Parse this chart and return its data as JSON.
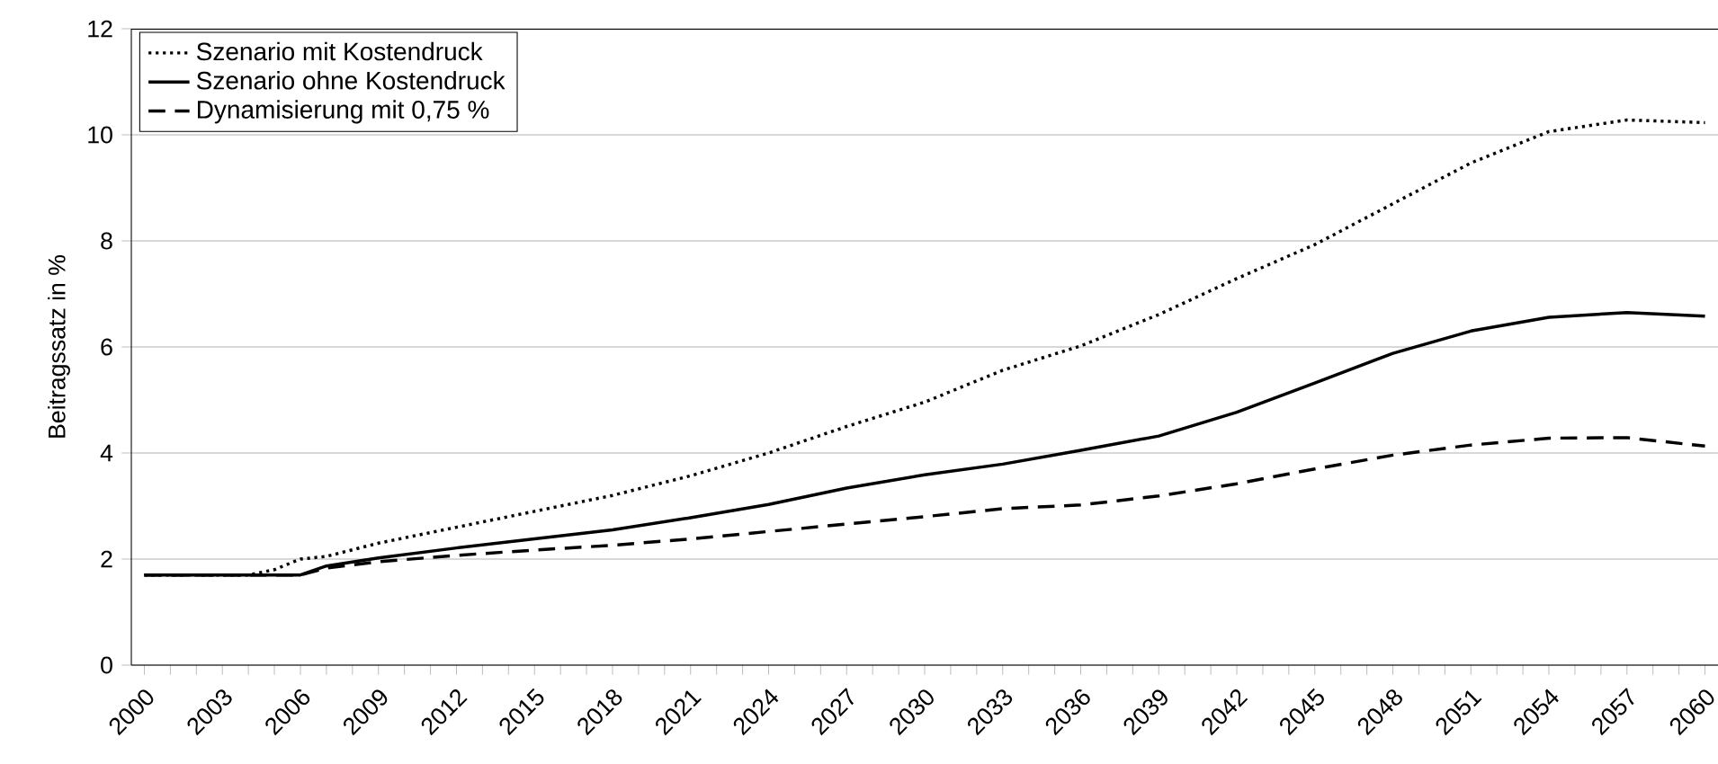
{
  "chart_data": {
    "type": "line",
    "ylabel": "Beitragssatz in %",
    "x": [
      2000,
      2001,
      2002,
      2003,
      2004,
      2005,
      2006,
      2007,
      2009,
      2012,
      2015,
      2018,
      2021,
      2024,
      2027,
      2030,
      2033,
      2036,
      2039,
      2042,
      2045,
      2048,
      2051,
      2054,
      2057,
      2060
    ],
    "series": [
      {
        "name": "Szenario mit Kostendruck",
        "color": "#000000",
        "line_style": "dotted",
        "values": [
          1.7,
          1.7,
          1.7,
          1.7,
          1.7,
          1.8,
          2.0,
          2.05,
          2.3,
          2.6,
          2.9,
          3.2,
          3.57,
          4.0,
          4.5,
          4.96,
          5.56,
          6.02,
          6.61,
          7.29,
          7.93,
          8.7,
          9.47,
          10.06,
          10.28,
          10.23
        ]
      },
      {
        "name": "Szenario ohne Kostendruck",
        "color": "#000000",
        "line_style": "solid",
        "values": [
          1.7,
          1.7,
          1.7,
          1.7,
          1.7,
          1.7,
          1.7,
          1.87,
          2.02,
          2.21,
          2.38,
          2.55,
          2.78,
          3.03,
          3.34,
          3.59,
          3.79,
          4.05,
          4.32,
          4.77,
          5.32,
          5.88,
          6.3,
          6.56,
          6.65,
          6.58
        ]
      },
      {
        "name": "Dynamisierung mit 0,75 %",
        "color": "#000000",
        "line_style": "dashed",
        "values": [
          1.7,
          1.7,
          1.7,
          1.7,
          1.7,
          1.7,
          1.7,
          1.83,
          1.95,
          2.07,
          2.17,
          2.26,
          2.38,
          2.52,
          2.66,
          2.8,
          2.95,
          3.02,
          3.19,
          3.42,
          3.7,
          3.96,
          4.15,
          4.28,
          4.29,
          4.13
        ]
      }
    ],
    "xlim": [
      1999.5,
      2060.5
    ],
    "xticks": [
      2000,
      2003,
      2006,
      2009,
      2012,
      2015,
      2018,
      2021,
      2024,
      2027,
      2030,
      2033,
      2036,
      2039,
      2042,
      2045,
      2048,
      2051,
      2054,
      2057,
      2060
    ],
    "ylim": [
      0,
      12
    ],
    "yticks": [
      0,
      2,
      4,
      6,
      8,
      10,
      12
    ],
    "grid": "y",
    "legend": "top left"
  }
}
